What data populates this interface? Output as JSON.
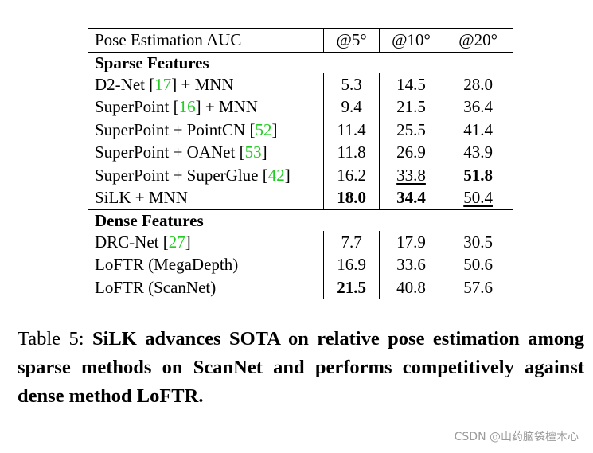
{
  "table": {
    "header": [
      "Pose Estimation AUC",
      "@5°",
      "@10°",
      "@20°"
    ],
    "sections": [
      {
        "title": "Sparse Features",
        "rows": [
          {
            "method": "D2-Net",
            "ref": "17",
            "suffix": " + MNN",
            "v5": "5.3",
            "v10": "14.5",
            "v20": "28.0"
          },
          {
            "method": "SuperPoint",
            "ref": "16",
            "suffix": " + MNN",
            "v5": "9.4",
            "v10": "21.5",
            "v20": "36.4"
          },
          {
            "method": "SuperPoint + PointCN",
            "ref": "52",
            "suffix": "",
            "v5": "11.4",
            "v10": "25.5",
            "v20": "41.4"
          },
          {
            "method": "SuperPoint + OANet",
            "ref": "53",
            "suffix": "",
            "v5": "11.8",
            "v10": "26.9",
            "v20": "43.9"
          },
          {
            "method": "SuperPoint + SuperGlue",
            "ref": "42",
            "suffix": "",
            "v5": "16.2",
            "v10": "33.8",
            "v20": "51.8"
          },
          {
            "method": "SiLK + MNN",
            "ref": "",
            "suffix": "",
            "v5": "18.0",
            "v10": "34.4",
            "v20": "50.4"
          }
        ]
      },
      {
        "title": "Dense Features",
        "rows": [
          {
            "method": "DRC-Net",
            "ref": "27",
            "suffix": "",
            "v5": "7.7",
            "v10": "17.9",
            "v20": "30.5"
          },
          {
            "method": "LoFTR (MegaDepth)",
            "ref": "",
            "suffix": "",
            "v5": "16.9",
            "v10": "33.6",
            "v20": "50.6"
          },
          {
            "method": "LoFTR (ScanNet)",
            "ref": "",
            "suffix": "",
            "v5": "21.5",
            "v10": "40.8",
            "v20": "57.6"
          }
        ]
      }
    ]
  },
  "caption": {
    "label": "Table 5: ",
    "text": "SiLK advances SOTA on relative pose estimation among sparse methods on ScanNet and performs competitively against dense method LoFTR."
  },
  "watermark": "CSDN @山药脑袋檀木心"
}
